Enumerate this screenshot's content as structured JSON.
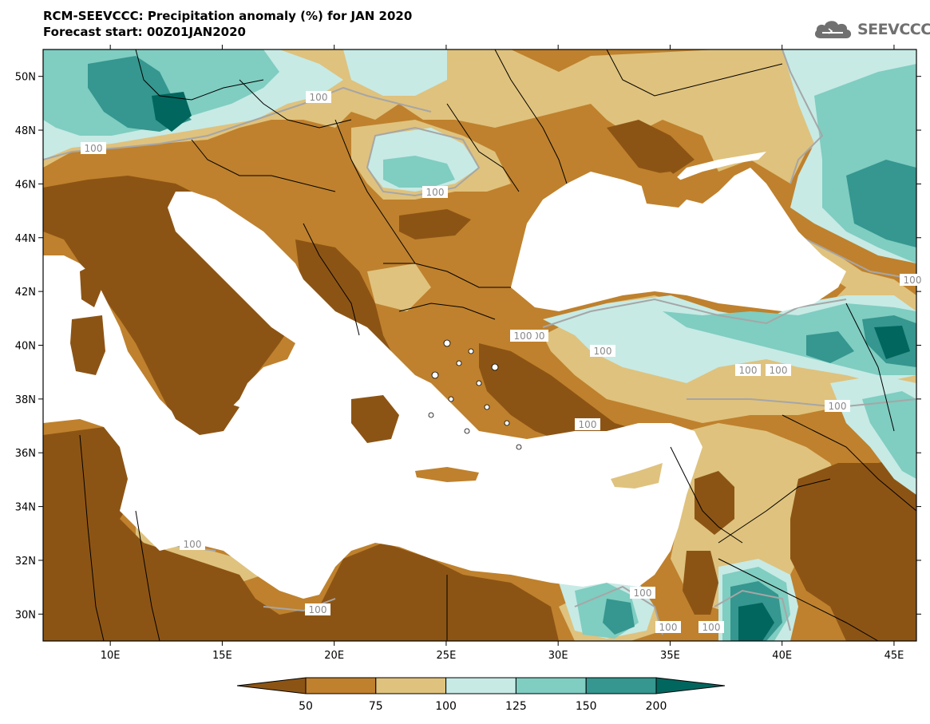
{
  "header": {
    "title_line1": "RCM-SEEVCCC: Precipitation anomaly (%) for JAN 2020",
    "title_line2": "Forecast start: 00Z01JAN2020"
  },
  "logo": {
    "text": "SEEVCCC",
    "icon": "cloud-icon"
  },
  "map": {
    "projection": "lat-lon",
    "lon_range": [
      7,
      46
    ],
    "lat_range": [
      29,
      51
    ],
    "lat_ticks": [
      "50N",
      "48N",
      "46N",
      "44N",
      "42N",
      "40N",
      "38N",
      "36N",
      "34N",
      "32N",
      "30N"
    ],
    "lon_ticks": [
      "10E",
      "15E",
      "20E",
      "25E",
      "30E",
      "35E",
      "40E",
      "45E"
    ],
    "contour_label": "100",
    "contour_label_count": 16,
    "colors": {
      "very_dry": "#8c5414",
      "dry": "#bf812d",
      "moderately_dry": "#dfc27d",
      "normal_wet": "#c7eae5",
      "wet": "#80cdc1",
      "very_wet": "#35978f",
      "extremely_wet": "#01665e",
      "sea_mask": "#ffffff",
      "contour_line": "#a6a6a6"
    }
  },
  "colorbar": {
    "levels": [
      "50",
      "75",
      "100",
      "125",
      "150",
      "200"
    ],
    "colors": [
      "#8c5414",
      "#bf812d",
      "#dfc27d",
      "#c7eae5",
      "#80cdc1",
      "#35978f",
      "#01665e"
    ],
    "extend": "both"
  }
}
